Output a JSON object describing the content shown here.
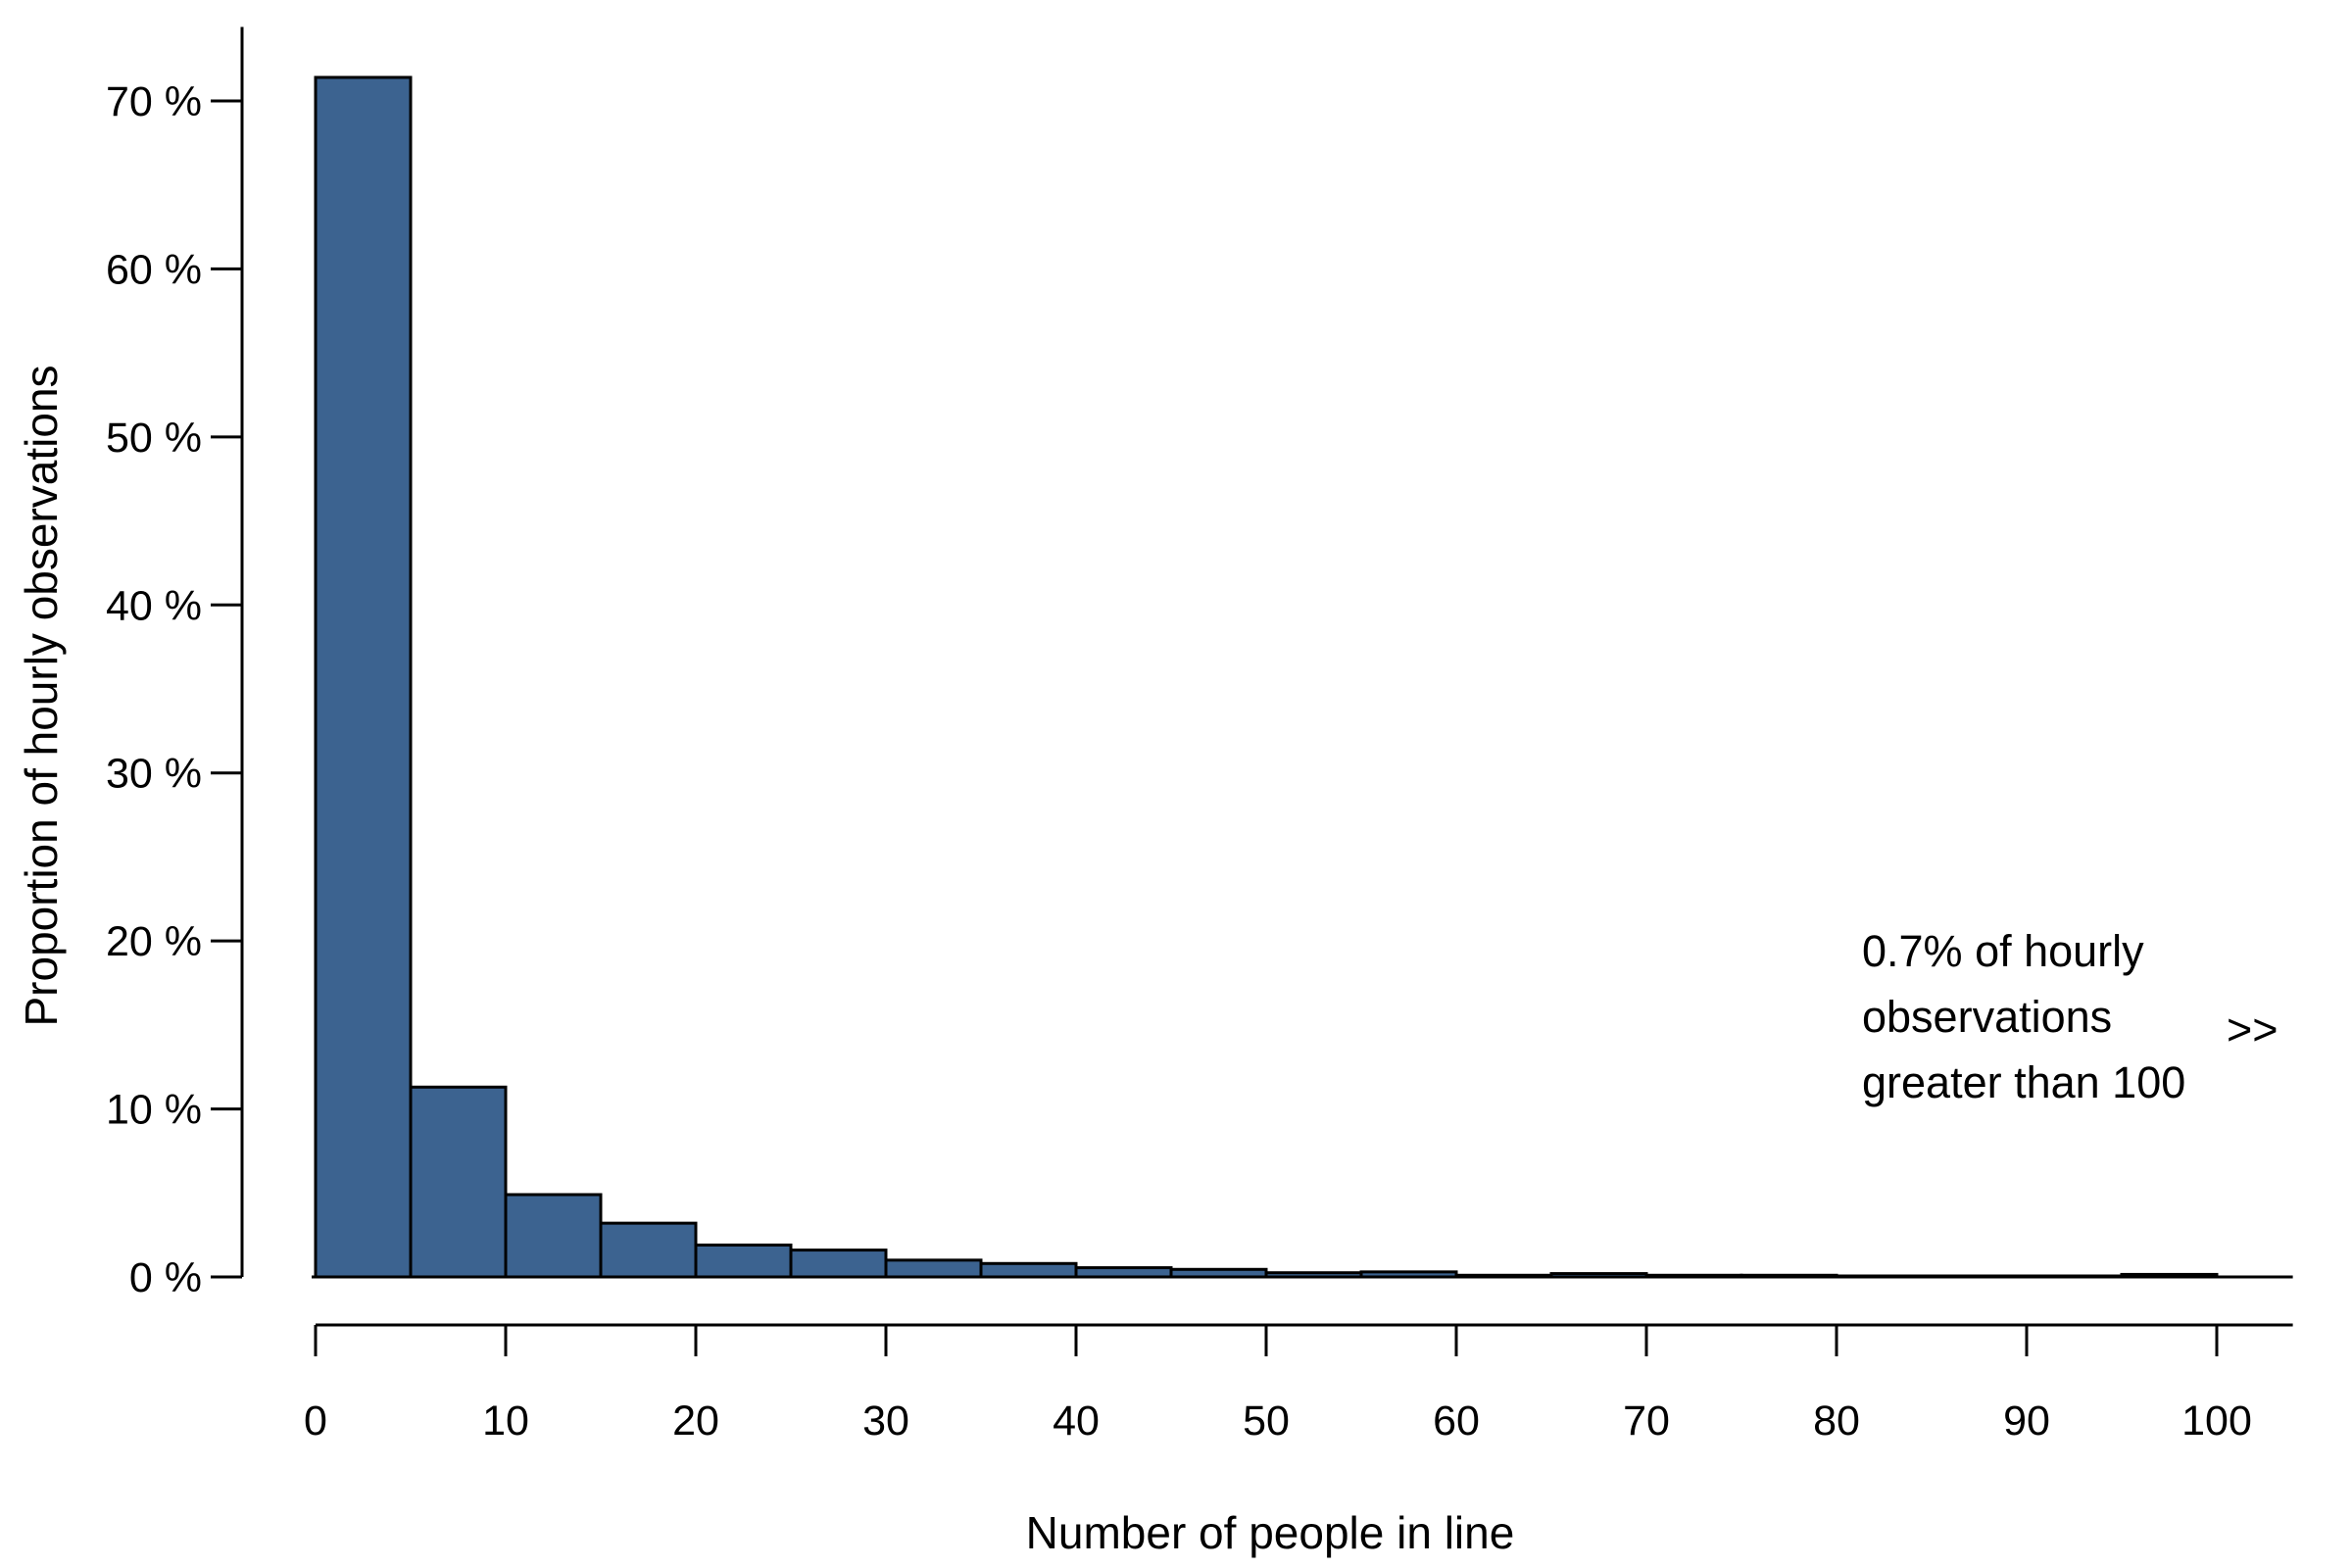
{
  "chart_data": {
    "type": "bar",
    "subtype": "histogram",
    "title": "",
    "xlabel": "Number of people in line",
    "ylabel": "Proportion of hourly observations",
    "bin_width": 5,
    "bin_edges": [
      0,
      5,
      10,
      15,
      20,
      25,
      30,
      35,
      40,
      45,
      50,
      55,
      60,
      65,
      70,
      75,
      80,
      85,
      90,
      95,
      100
    ],
    "values": [
      71.4,
      11.3,
      4.9,
      3.2,
      1.9,
      1.6,
      1.0,
      0.8,
      0.55,
      0.45,
      0.25,
      0.3,
      0.1,
      0.2,
      0.1,
      0.1,
      0.05,
      0.05,
      0.05,
      0.15
    ],
    "x_ticks": {
      "values": [
        0,
        10,
        20,
        30,
        40,
        50,
        60,
        70,
        80,
        90,
        100
      ],
      "labels": [
        "0",
        "10",
        "20",
        "30",
        "40",
        "50",
        "60",
        "70",
        "80",
        "90",
        "100"
      ]
    },
    "y_ticks": {
      "values": [
        0,
        10,
        20,
        30,
        40,
        50,
        60,
        70
      ],
      "labels": [
        "0 %",
        "10 %",
        "20 %",
        "30 %",
        "40 %",
        "50 %",
        "60 %",
        "70 %"
      ]
    },
    "xlim": [
      0,
      104
    ],
    "ylim": [
      0,
      74.4
    ],
    "grid": false,
    "legend": false,
    "annotation": {
      "lines": [
        "0.7% of hourly",
        "observations",
        "greater than 100"
      ],
      "arrow": ">>"
    },
    "colors": {
      "bar_fill": "#3c6390",
      "bar_stroke": "#000000",
      "axis": "#000000",
      "text": "#000000",
      "background": "#ffffff"
    }
  }
}
